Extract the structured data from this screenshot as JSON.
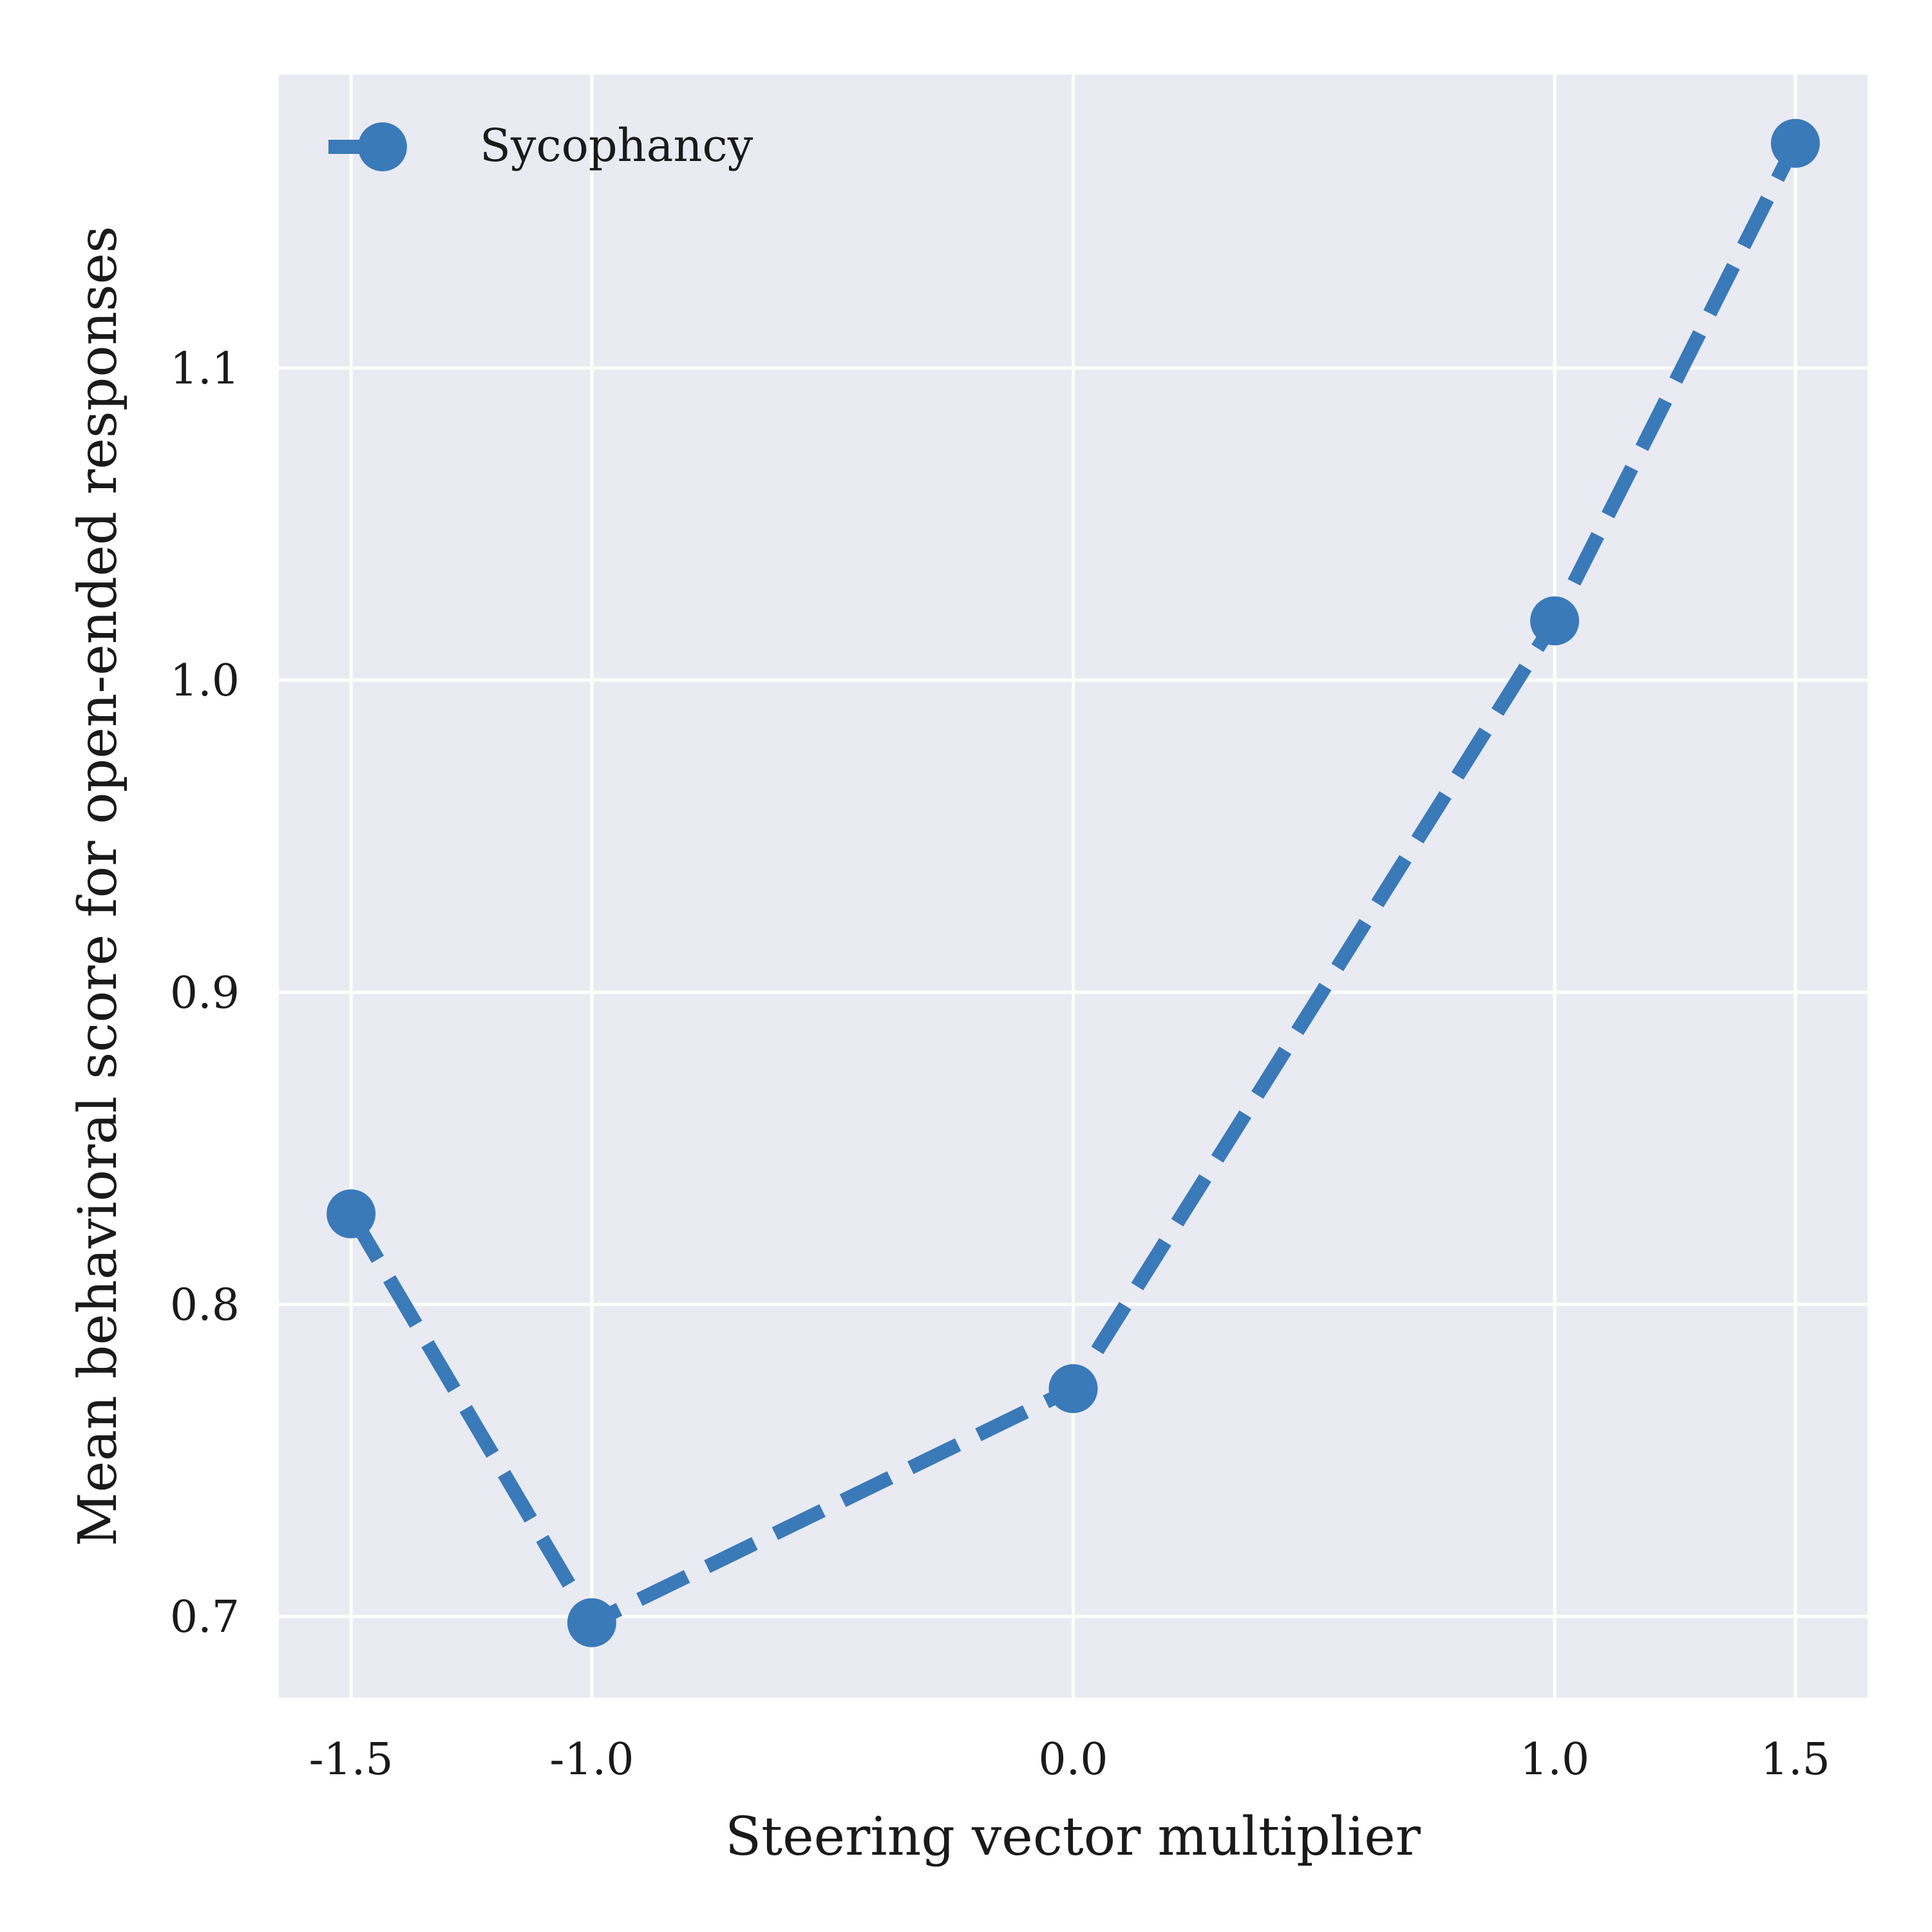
{
  "chart_data": {
    "type": "line",
    "title": "",
    "xlabel": "Steering vector multiplier",
    "ylabel": "Mean behavioral score for open-ended responses",
    "x": [
      -1.5,
      -1.0,
      0.0,
      1.0,
      1.5
    ],
    "x_ticks": [
      "-1.5",
      "-1.0",
      "0.0",
      "1.0",
      "1.5"
    ],
    "y_ticks": [
      "0.7",
      "0.8",
      "0.9",
      "1.0",
      "1.1"
    ],
    "xlim": [
      -1.65,
      1.65
    ],
    "ylim": [
      0.674,
      1.194
    ],
    "series": [
      {
        "name": "Sycophancy",
        "values": [
          0.829,
          0.698,
          0.773,
          1.019,
          1.172
        ],
        "color": "#3a7ab8",
        "line_style": "dashed",
        "marker": "circle"
      }
    ],
    "grid": true,
    "legend_position": "top-left",
    "background_color": "#eaeaf2"
  }
}
